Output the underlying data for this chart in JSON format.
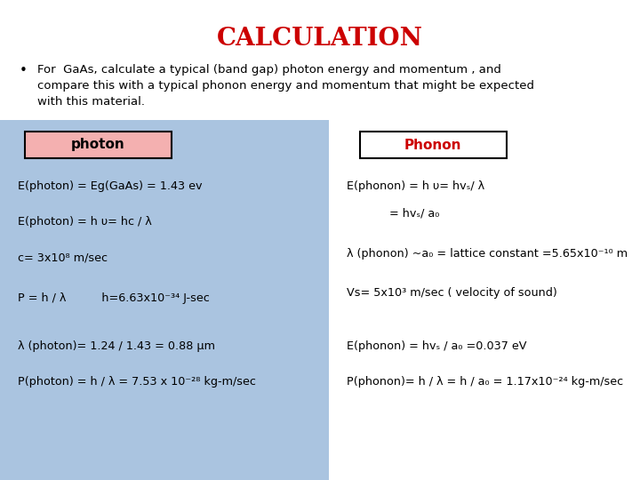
{
  "title": "CALCULATION",
  "title_color": "#cc0000",
  "title_fontsize": 20,
  "bullet_text_line1": "For  GaAs, calculate a typical (band gap) photon energy and momentum , and",
  "bullet_text_line2": "compare this with a typical phonon energy and momentum that might be expected",
  "bullet_text_line3": "with this material.",
  "photon_label": "photon",
  "phonon_label": "Phonon",
  "photon_box_bg": "#f4b0b0",
  "phonon_box_bg": "#ffffff",
  "left_bg": "#aac4e0",
  "photon_lines": [
    "E(photon) = Eg(GaAs) = 1.43 ev",
    "E(photon) = h υ= hc / λ",
    "c= 3x10⁸ m/sec",
    "P = h / λ          h=6.63x10⁻³⁴ J-sec",
    "λ (photon)= 1.24 / 1.43 = 0.88 μm",
    "P(photon) = h / λ = 7.53 x 10⁻²⁸ kg-m/sec"
  ],
  "phonon_lines": [
    "E(phonon) = h υ= hvₛ/ λ",
    "            = hvₛ/ a₀",
    "λ (phonon) ~a₀ = lattice constant =5.65x10⁻¹⁰ m",
    "Vs= 5x10³ m/sec ( velocity of sound)",
    "E(phonon) = hvₛ / a₀ =0.037 eV",
    "P(phonon)= h / λ = h / a₀ = 1.17x10⁻²⁴ kg-m/sec"
  ],
  "background_color": "#ffffff",
  "fig_width": 7.2,
  "fig_height": 5.4,
  "dpi": 100
}
